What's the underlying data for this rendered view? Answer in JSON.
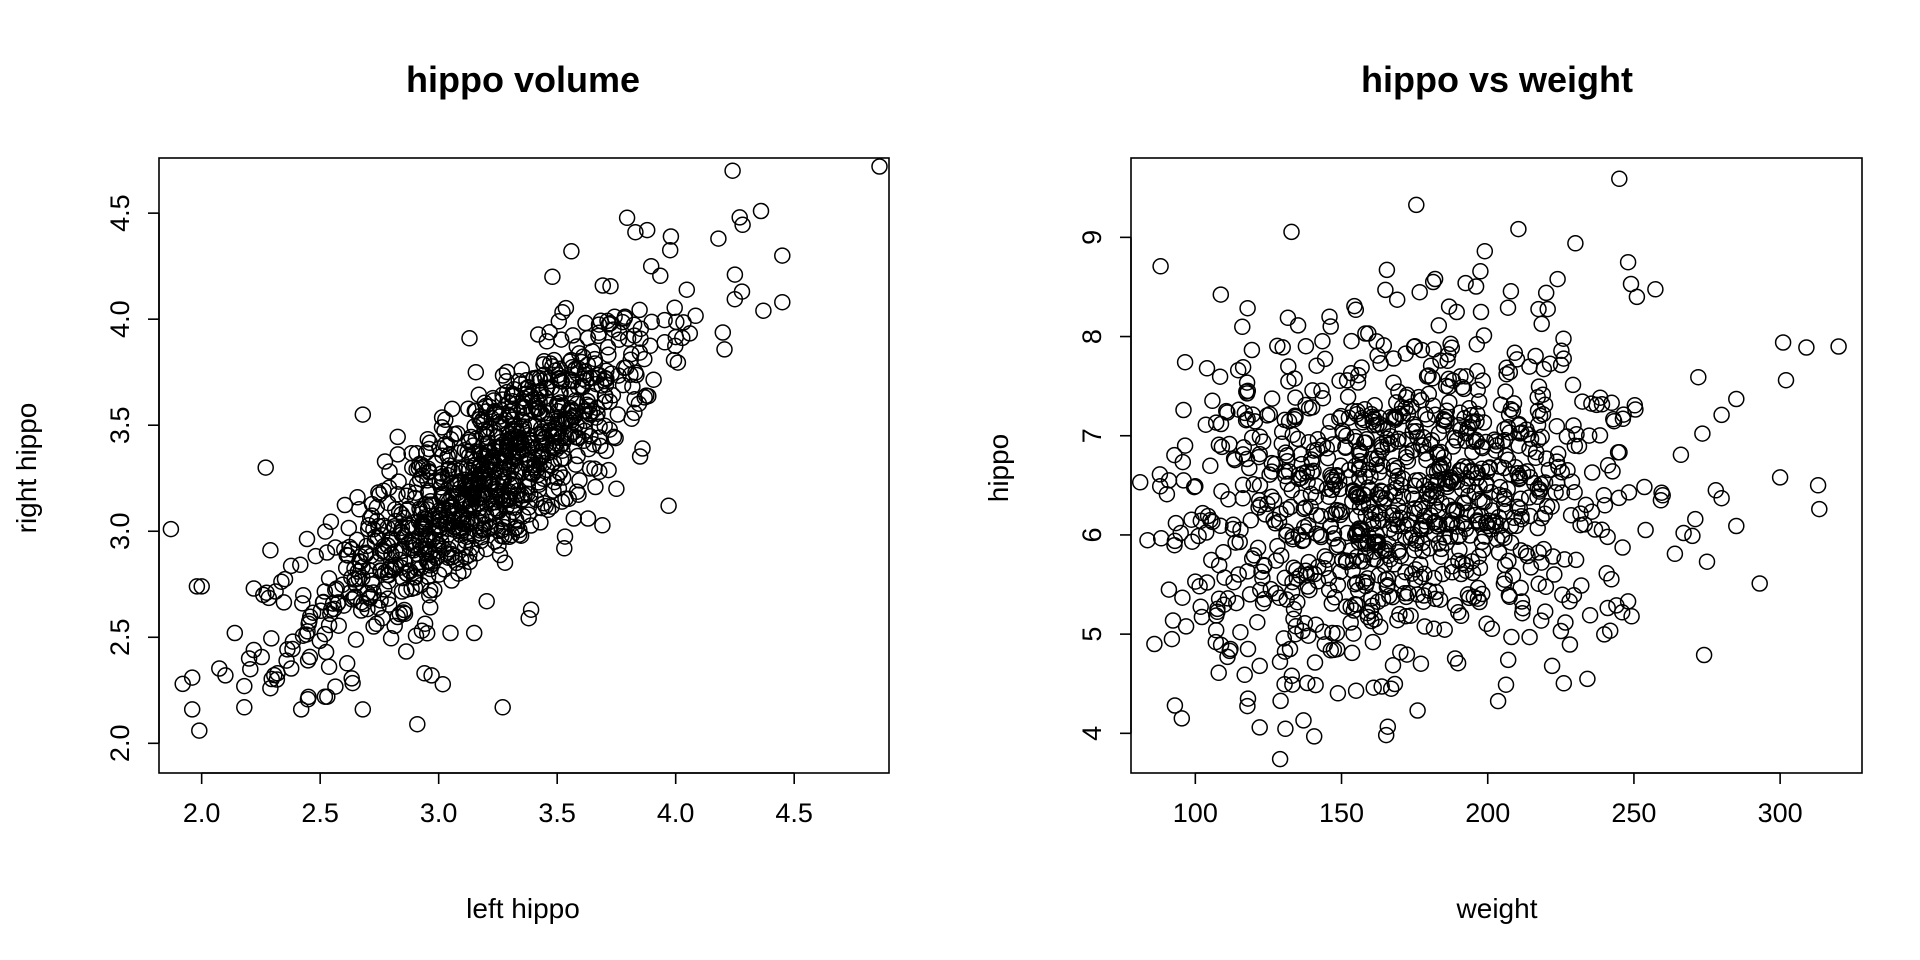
{
  "chart_data": [
    {
      "type": "scatter",
      "title": "hippo volume",
      "xlabel": "left hippo",
      "ylabel": "right hippo",
      "xlim": [
        1.82,
        4.9
      ],
      "ylim": [
        1.86,
        4.76
      ],
      "xticks": [
        2.0,
        2.5,
        3.0,
        3.5,
        4.0,
        4.5
      ],
      "yticks": [
        2.0,
        2.5,
        3.0,
        3.5,
        4.0,
        4.5
      ],
      "xtick_labels": [
        "2.0",
        "2.5",
        "3.0",
        "3.5",
        "4.0",
        "4.5"
      ],
      "ytick_labels": [
        "2.0",
        "2.5",
        "3.0",
        "3.5",
        "4.0",
        "4.5"
      ],
      "grid": false,
      "marker": "open-circle",
      "color": "#000000",
      "n_points_estimated": 1100,
      "cloud": {
        "mean_x": 3.2,
        "mean_y": 3.25,
        "sd_x": 0.36,
        "sd_y": 0.37,
        "correlation": 0.82
      },
      "points": [
        [
          4.86,
          4.72
        ],
        [
          4.24,
          4.7
        ],
        [
          4.36,
          4.51
        ],
        [
          4.27,
          4.48
        ],
        [
          4.45,
          4.3
        ],
        [
          4.18,
          4.38
        ],
        [
          4.45,
          4.08
        ],
        [
          4.37,
          4.04
        ],
        [
          4.25,
          4.21
        ],
        [
          3.98,
          4.39
        ],
        [
          3.88,
          4.42
        ],
        [
          3.83,
          4.41
        ],
        [
          3.56,
          4.32
        ],
        [
          3.48,
          4.2
        ],
        [
          3.97,
          3.12
        ],
        [
          3.86,
          3.39
        ],
        [
          3.38,
          2.59
        ],
        [
          3.39,
          2.63
        ],
        [
          3.27,
          2.17
        ],
        [
          2.91,
          2.09
        ],
        [
          2.68,
          2.16
        ],
        [
          2.94,
          2.33
        ],
        [
          2.97,
          2.32
        ],
        [
          3.15,
          2.52
        ],
        [
          3.05,
          2.52
        ],
        [
          3.13,
          3.91
        ],
        [
          2.68,
          3.55
        ],
        [
          2.27,
          3.3
        ],
        [
          1.87,
          3.01
        ],
        [
          1.85,
          2.61
        ],
        [
          1.98,
          2.74
        ],
        [
          2.0,
          2.74
        ],
        [
          1.92,
          2.28
        ],
        [
          1.96,
          2.31
        ],
        [
          1.96,
          2.16
        ],
        [
          1.99,
          2.06
        ],
        [
          1.85,
          1.89
        ],
        [
          2.1,
          2.32
        ],
        [
          2.18,
          2.27
        ],
        [
          2.18,
          2.17
        ],
        [
          2.14,
          2.52
        ],
        [
          2.2,
          2.4
        ],
        [
          2.22,
          2.44
        ],
        [
          2.29,
          2.26
        ],
        [
          2.32,
          2.33
        ],
        [
          2.42,
          2.16
        ],
        [
          2.53,
          2.22
        ],
        [
          2.52,
          2.22
        ],
        [
          2.22,
          2.73
        ],
        [
          2.26,
          2.7
        ],
        [
          2.29,
          2.91
        ],
        [
          3.75,
          3.2
        ],
        [
          3.57,
          3.06
        ],
        [
          3.63,
          3.06
        ],
        [
          3.52,
          3.14
        ]
      ]
    },
    {
      "type": "scatter",
      "title": "hippo vs weight",
      "xlabel": "weight",
      "ylabel": "hippo",
      "xlim": [
        78,
        328
      ],
      "ylim": [
        3.6,
        9.8
      ],
      "xticks": [
        100,
        150,
        200,
        250,
        300
      ],
      "yticks": [
        4,
        5,
        6,
        7,
        8,
        9
      ],
      "xtick_labels": [
        "100",
        "150",
        "200",
        "250",
        "300"
      ],
      "ytick_labels": [
        "4",
        "5",
        "6",
        "7",
        "8",
        "9"
      ],
      "grid": false,
      "marker": "open-circle",
      "color": "#000000",
      "n_points_estimated": 1100,
      "cloud": {
        "mean_x": 170,
        "mean_y": 6.45,
        "sd_x": 38,
        "sd_y": 0.85,
        "correlation": 0.15
      },
      "points": [
        [
          245,
          9.59
        ],
        [
          230,
          8.94
        ],
        [
          248,
          8.75
        ],
        [
          249,
          8.53
        ],
        [
          251,
          8.4
        ],
        [
          199,
          8.86
        ],
        [
          220,
          8.44
        ],
        [
          182,
          8.58
        ],
        [
          165,
          8.47
        ],
        [
          104,
          7.68
        ],
        [
          88,
          6.49
        ],
        [
          91,
          6.55
        ],
        [
          96,
          6.55
        ],
        [
          100,
          6.49
        ],
        [
          93,
          5.94
        ],
        [
          95,
          6.02
        ],
        [
          92,
          4.95
        ],
        [
          86,
          4.9
        ],
        [
          93,
          4.28
        ],
        [
          122,
          4.06
        ],
        [
          129,
          3.74
        ],
        [
          137,
          4.13
        ],
        [
          176,
          4.23
        ],
        [
          155,
          4.43
        ],
        [
          161,
          4.46
        ],
        [
          167,
          4.45
        ],
        [
          133,
          4.58
        ],
        [
          274,
          4.79
        ],
        [
          207,
          4.74
        ],
        [
          222,
          4.68
        ],
        [
          293,
          5.51
        ],
        [
          300,
          6.58
        ],
        [
          313,
          6.5
        ],
        [
          320,
          7.9
        ],
        [
          301,
          7.94
        ],
        [
          309,
          7.89
        ],
        [
          302,
          7.56
        ],
        [
          272,
          7.59
        ],
        [
          285,
          7.37
        ],
        [
          280,
          7.21
        ],
        [
          278,
          6.45
        ],
        [
          280,
          6.37
        ],
        [
          285,
          6.09
        ],
        [
          271,
          6.16
        ],
        [
          270,
          5.99
        ],
        [
          267,
          6.02
        ],
        [
          275,
          5.73
        ],
        [
          264,
          5.81
        ],
        [
          246,
          5.22
        ],
        [
          244,
          5.29
        ],
        [
          248,
          5.33
        ],
        [
          235,
          5.19
        ],
        [
          232,
          5.49
        ],
        [
          228,
          5.33
        ],
        [
          241,
          5.98
        ],
        [
          254,
          6.05
        ],
        [
          100,
          5.53
        ],
        [
          104,
          5.52
        ],
        [
          107,
          4.92
        ],
        [
          108,
          4.61
        ],
        [
          118,
          4.85
        ],
        [
          118,
          4.35
        ],
        [
          111,
          4.77
        ],
        [
          112,
          4.85
        ]
      ]
    }
  ]
}
